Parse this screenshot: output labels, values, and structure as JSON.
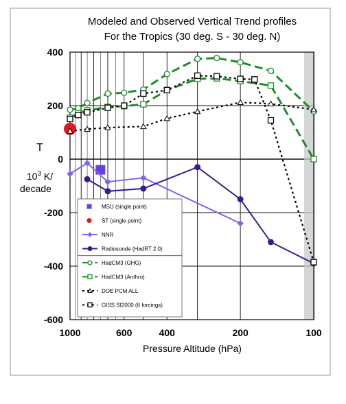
{
  "chart_data": {
    "type": "line",
    "title": "Modeled and Observed Vertical Trend profiles",
    "subtitle": "For the Tropics (30 deg. S - 30 deg. N)",
    "xlabel": "Pressure Altitude  (hPa)",
    "ylabel_lines": [
      "T",
      "10^3  K/",
      "decade"
    ],
    "x_scale": "log",
    "x_reversed": true,
    "xlim": [
      1000,
      100
    ],
    "ylim": [
      -600,
      400
    ],
    "x_ticks": [
      {
        "value": 1000,
        "label": "1000"
      },
      {
        "value": 600,
        "label": "600"
      },
      {
        "value": 400,
        "label": "400"
      },
      {
        "value": 200,
        "label": "200"
      },
      {
        "value": 100,
        "label": "100"
      }
    ],
    "y_ticks": [
      {
        "value": 400,
        "label": "400"
      },
      {
        "value": 200,
        "label": "200"
      },
      {
        "value": 0,
        "label": "0"
      },
      {
        "value": -200,
        "label": "-200"
      },
      {
        "value": -400,
        "label": "-400"
      },
      {
        "value": -600,
        "label": "-600"
      }
    ],
    "grid": true,
    "legend_position": "bottom-left",
    "series": [
      {
        "name": "MSU (single point)",
        "key": "msu",
        "color": "#6a3fe0",
        "style": "point-square",
        "x": [
          750
        ],
        "y": [
          -40
        ]
      },
      {
        "name": "ST (single point)",
        "key": "st",
        "color": "#e8141e",
        "style": "point-circle",
        "x": [
          1000
        ],
        "y": [
          113
        ]
      },
      {
        "name": "NNR",
        "key": "nnr",
        "color": "#7b66ee",
        "style": "line-diamond",
        "x": [
          1000,
          850,
          700,
          500,
          200
        ],
        "y": [
          -55,
          -15,
          -85,
          -70,
          -240
        ]
      },
      {
        "name": "Radiosonde (HadRT 2.0)",
        "key": "radiosonde",
        "color": "#3a1a8e",
        "style": "line-dot",
        "x": [
          850,
          700,
          500,
          300,
          200,
          150,
          100
        ],
        "y": [
          -75,
          -120,
          -110,
          -30,
          -150,
          -310,
          -390
        ]
      },
      {
        "name": "HadCM3 (GHG)",
        "key": "hadcm3_ghg",
        "color": "#1f8a2a",
        "style": "dash-circle",
        "x": [
          1000,
          925,
          850,
          700,
          600,
          500,
          400,
          300,
          250,
          200,
          150,
          100
        ],
        "y": [
          185,
          190,
          210,
          245,
          248,
          260,
          318,
          375,
          378,
          362,
          330,
          178
        ]
      },
      {
        "name": "HadCM3 (Anthro)",
        "key": "hadcm3_anthro",
        "color": "#1f8a2a",
        "style": "dash-square",
        "x": [
          1000,
          925,
          850,
          700,
          600,
          500,
          400,
          300,
          250,
          200,
          150,
          100
        ],
        "y": [
          155,
          172,
          182,
          195,
          198,
          205,
          258,
          300,
          302,
          292,
          275,
          0
        ]
      },
      {
        "name": "DOE PCM ALL",
        "key": "doe_pcm",
        "color": "#000000",
        "style": "dot-triangle",
        "x": [
          1000,
          850,
          700,
          500,
          400,
          300,
          200,
          150,
          100
        ],
        "y": [
          105,
          112,
          118,
          122,
          152,
          178,
          212,
          207,
          185
        ]
      },
      {
        "name": "GISS SI2000 (6 forcings)",
        "key": "giss",
        "color": "#000000",
        "style": "dot-square",
        "x": [
          1000,
          925,
          850,
          700,
          600,
          500,
          400,
          300,
          250,
          200,
          175,
          150,
          100
        ],
        "y": [
          150,
          165,
          175,
          192,
          200,
          245,
          258,
          312,
          310,
          300,
          298,
          145,
          -385
        ]
      }
    ]
  }
}
